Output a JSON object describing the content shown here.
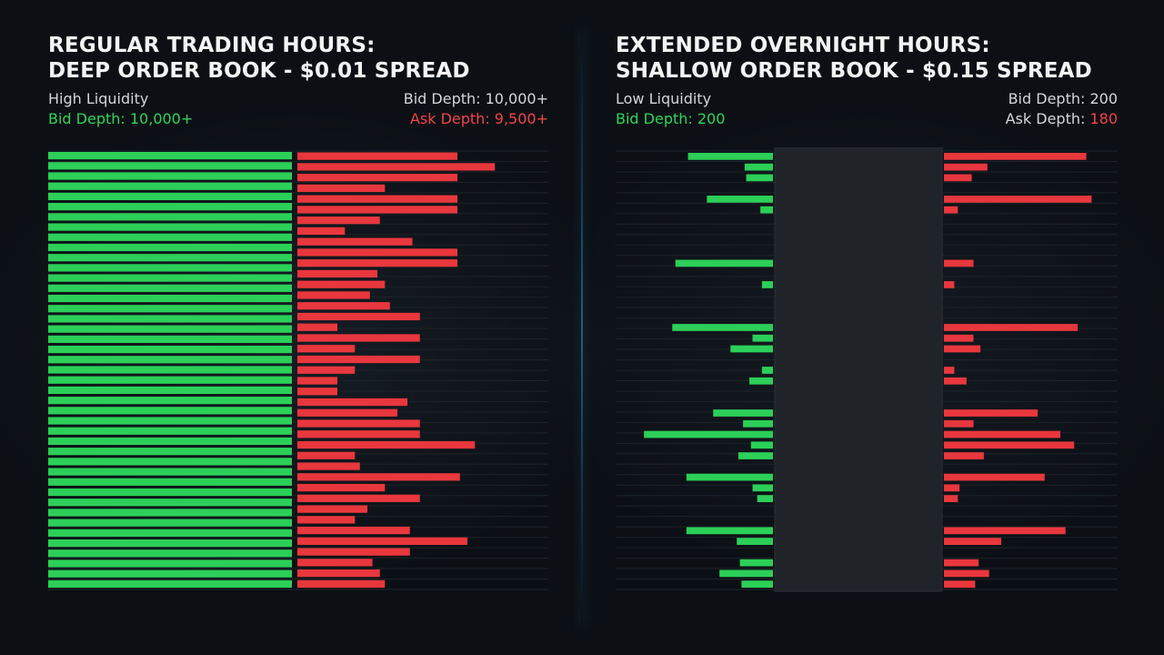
{
  "colors": {
    "background": "#0c1015",
    "bid": "#2ccf58",
    "ask": "#e8373d",
    "spread_gap": "#202428",
    "row_line": "#1d232a",
    "label_gray": "#d2d5d9",
    "divider_glow": "#3c96d2"
  },
  "chart_data": [
    {
      "type": "bar",
      "title_lines": [
        "REGULAR TRADING HOURS:",
        "DEEP ORDER BOOK - $0.01 SPREAD"
      ],
      "liquidity_label": "High Liquidity",
      "bid_depth_label": "Bid Depth: ",
      "bid_depth_value": "10,000+",
      "ask_depth_label": "Ask Depth: ",
      "ask_depth_value": "9,500+",
      "summary_bid_depth_label": "Bid Depth: ",
      "summary_bid_depth_value": "10,000+",
      "spread": "$0.01",
      "bid_max": 100,
      "ask_max": 100,
      "bids": [
        100,
        100,
        100,
        100,
        100,
        100,
        100,
        100,
        100,
        100,
        100,
        100,
        100,
        100,
        100,
        100,
        100,
        100,
        100,
        100,
        100,
        100,
        100,
        100,
        100,
        100,
        100,
        100,
        100,
        100,
        100,
        100,
        100,
        100,
        100,
        100,
        100,
        100,
        100,
        100,
        100,
        100,
        100
      ],
      "asks": [
        64,
        79,
        64,
        35,
        64,
        64,
        33,
        19,
        46,
        64,
        64,
        32,
        35,
        29,
        37,
        49,
        16,
        49,
        23,
        49,
        23,
        16,
        16,
        44,
        40,
        49,
        49,
        71,
        23,
        25,
        65,
        35,
        49,
        28,
        23,
        45,
        68,
        45,
        30,
        33,
        35
      ]
    },
    {
      "type": "bar",
      "title_lines": [
        "EXTENDED OVERNIGHT HOURS:",
        "SHALLOW ORDER BOOK - $0.15 SPREAD"
      ],
      "liquidity_label": "Low Liquidity",
      "bid_depth_label": "Bid Depth: ",
      "bid_depth_value": "200",
      "ask_depth_label": "Ask Depth: ",
      "ask_depth_value": "180",
      "summary_bid_depth_label": "Bid Depth: ",
      "summary_bid_depth_value": "200",
      "spread": "$0.15",
      "bid_max": 100,
      "ask_max": 100,
      "bids": [
        54,
        18,
        17,
        0,
        42,
        8,
        0,
        0,
        0,
        0,
        62,
        0,
        7,
        0,
        0,
        0,
        64,
        13,
        27,
        0,
        7,
        15,
        0,
        0,
        38,
        19,
        82,
        14,
        22,
        0,
        55,
        13,
        10,
        0,
        0,
        55,
        23,
        0,
        21,
        34,
        20
      ],
      "asks": [
        82,
        25,
        16,
        0,
        85,
        8,
        0,
        0,
        0,
        0,
        17,
        0,
        6,
        0,
        0,
        0,
        77,
        17,
        21,
        0,
        6,
        13,
        0,
        0,
        54,
        17,
        67,
        75,
        23,
        0,
        58,
        9,
        8,
        0,
        0,
        70,
        33,
        0,
        20,
        26,
        18
      ]
    }
  ]
}
